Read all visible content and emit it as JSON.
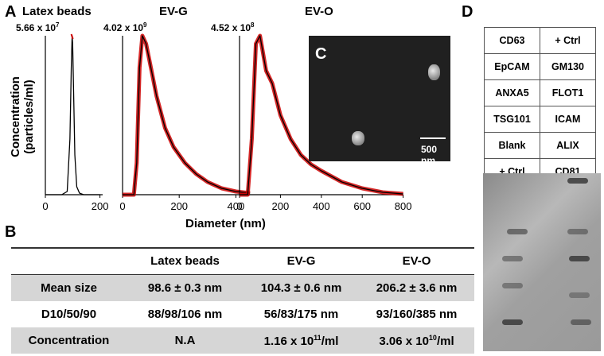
{
  "panels": {
    "a_letter": "A",
    "b_letter": "B",
    "c_letter": "C",
    "d_letter": "D"
  },
  "panel_a": {
    "ylabel_line1": "Concentration",
    "ylabel_line2": "(particles/ml)",
    "xlabel": "Diameter (nm)",
    "plots": [
      {
        "title": "Latex beads",
        "peak_base": "5.66 x 10",
        "peak_exp": "7",
        "x_ticks": [
          "0",
          "200"
        ],
        "curve_color": "#000000",
        "error_color": "#cc0000",
        "x": [
          0,
          60,
          80,
          90,
          95,
          98,
          100,
          104,
          108,
          115,
          125,
          140,
          200
        ],
        "y": [
          0,
          0,
          0.02,
          0.35,
          0.8,
          1.0,
          0.95,
          0.6,
          0.25,
          0.05,
          0.01,
          0,
          0
        ]
      },
      {
        "title": "EV-G",
        "peak_base": "4.02 x 10",
        "peak_exp": "9",
        "x_ticks": [
          "0",
          "200",
          "400"
        ],
        "curve_color": "#000000",
        "error_color": "#cc0000",
        "x": [
          0,
          40,
          50,
          60,
          70,
          83,
          100,
          120,
          150,
          180,
          220,
          260,
          300,
          350,
          400,
          450
        ],
        "y": [
          0,
          0,
          0.2,
          0.8,
          1.0,
          0.95,
          0.8,
          0.62,
          0.42,
          0.3,
          0.2,
          0.13,
          0.08,
          0.04,
          0.02,
          0.01
        ]
      },
      {
        "title": "EV-O",
        "peak_base": "4.52 x 10",
        "peak_exp": "8",
        "x_ticks": [
          "0",
          "200",
          "400",
          "600",
          "800"
        ],
        "curve_color": "#000000",
        "error_color": "#cc0000",
        "x": [
          0,
          40,
          60,
          80,
          100,
          130,
          160,
          200,
          250,
          300,
          350,
          400,
          500,
          600,
          700,
          800
        ],
        "y": [
          0,
          0,
          0.35,
          0.95,
          1.0,
          0.78,
          0.7,
          0.5,
          0.35,
          0.25,
          0.19,
          0.15,
          0.08,
          0.04,
          0.015,
          0.005
        ]
      }
    ]
  },
  "panel_c": {
    "scale_label": "500 nm"
  },
  "panel_b": {
    "headers": [
      "",
      "Latex beads",
      "EV-G",
      "EV-O"
    ],
    "rows": [
      {
        "label": "Mean size",
        "cells": [
          "98.6 ± 0.3 nm",
          "104.3 ± 0.6 nm",
          "206.2 ± 3.6 nm"
        ],
        "shaded": true
      },
      {
        "label": "D10/50/90",
        "cells": [
          "88/98/106 nm",
          "56/83/175 nm",
          "93/160/385 nm"
        ],
        "shaded": false
      },
      {
        "label": "Concentration",
        "cells": [
          "N.A",
          "1.16 x 10",
          "3.06 x 10"
        ],
        "exps": [
          "",
          "11",
          "10"
        ],
        "suffix": [
          "",
          "/ml",
          "/ml"
        ],
        "shaded": true
      }
    ]
  },
  "panel_d": {
    "grid": [
      [
        "CD63",
        "+ Ctrl"
      ],
      [
        "EpCAM",
        "GM130"
      ],
      [
        "ANXA5",
        "FLOT1"
      ],
      [
        "TSG101",
        "ICAM"
      ],
      [
        "Blank",
        "ALIX"
      ],
      [
        "+ Ctrl",
        "CD81"
      ]
    ]
  }
}
